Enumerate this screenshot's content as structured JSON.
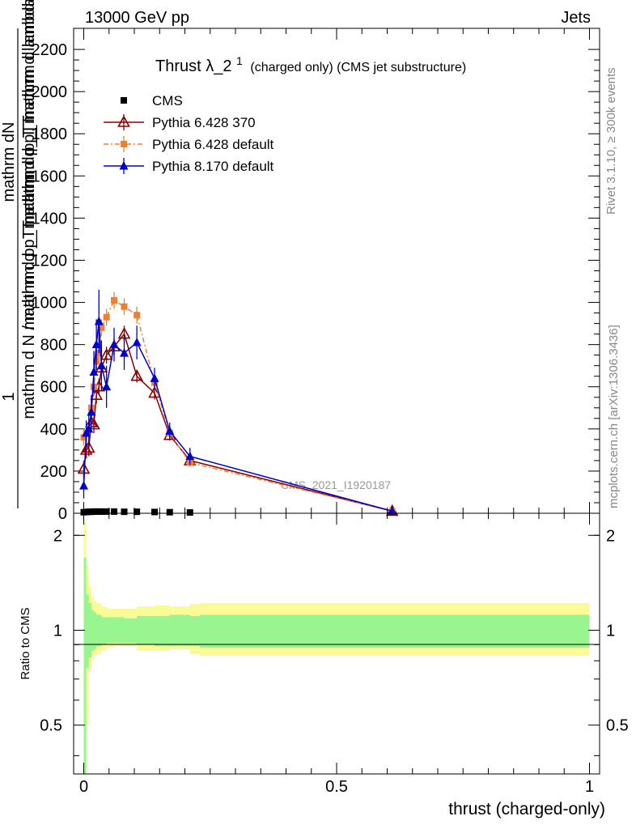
{
  "header": {
    "left": "13000 GeV pp",
    "right": "Jets"
  },
  "side_labels": {
    "rivet": "Rivet 3.1.10, ≥ 300k events",
    "mcplots": "mcplots.cern.ch [arXiv:1306.3436]"
  },
  "chart_data": {
    "type": "line",
    "title": "Thrust λ_2",
    "title_superscript": "1",
    "subtitle": "(charged only) (CMS jet substructure)",
    "analysis_label": "CMS_2021_I1920187",
    "xlabel": "thrust (charged-only)",
    "ylabel_top": "1",
    "ylabel_mid": "mathrm dN",
    "ylabel_denoms": [
      "mathrm d N / mathrm d p_T mathrm d p_T",
      "mathrm d p_T mathrm d p_T mathrm d lambda",
      "mathrm d p_T mathrm d lambda"
    ],
    "xlim": [
      -0.02,
      1.02
    ],
    "ylim": [
      0,
      2300
    ],
    "x_ticks": [
      "0",
      "0.5",
      "1"
    ],
    "y_ticks": [
      "0",
      "200",
      "400",
      "600",
      "800",
      "1000",
      "1200",
      "1400",
      "1600",
      "1800",
      "2000",
      "2200"
    ],
    "legend_position": "top-left",
    "series": [
      {
        "name": "CMS",
        "color": "#000000",
        "marker": "square",
        "x": [
          0.0,
          0.005,
          0.01,
          0.015,
          0.02,
          0.025,
          0.03,
          0.035,
          0.045,
          0.06,
          0.08,
          0.105,
          0.14,
          0.17,
          0.21
        ],
        "y": [
          5,
          6,
          7,
          7,
          8,
          8,
          8,
          8,
          8,
          8,
          7,
          7,
          6,
          5,
          4
        ]
      },
      {
        "name": "Pythia 6.428 370",
        "color": "#8b0000",
        "marker": "open-triangle",
        "x": [
          0.0,
          0.005,
          0.01,
          0.015,
          0.02,
          0.025,
          0.03,
          0.035,
          0.045,
          0.06,
          0.08,
          0.105,
          0.14,
          0.17,
          0.21,
          0.61
        ],
        "y": [
          210,
          300,
          310,
          430,
          420,
          560,
          600,
          690,
          750,
          790,
          850,
          650,
          570,
          370,
          250,
          10
        ],
        "err": [
          40,
          40,
          40,
          40,
          40,
          40,
          40,
          40,
          40,
          40,
          40,
          30,
          30,
          25,
          20,
          5
        ]
      },
      {
        "name": "Pythia 6.428 default",
        "color": "#f08030",
        "marker": "filled-square",
        "dash": true,
        "x": [
          0.0,
          0.005,
          0.01,
          0.015,
          0.02,
          0.025,
          0.03,
          0.035,
          0.045,
          0.06,
          0.08,
          0.105,
          0.14,
          0.17,
          0.21,
          0.61
        ],
        "y": [
          360,
          380,
          400,
          500,
          600,
          720,
          760,
          880,
          930,
          1010,
          980,
          940,
          620,
          380,
          240,
          10
        ],
        "err": [
          40,
          40,
          40,
          40,
          40,
          40,
          40,
          40,
          40,
          40,
          40,
          40,
          30,
          25,
          20,
          5
        ]
      },
      {
        "name": "Pythia 8.170 default",
        "color": "#0000cc",
        "marker": "filled-triangle",
        "x": [
          0.0,
          0.005,
          0.01,
          0.015,
          0.02,
          0.025,
          0.03,
          0.035,
          0.045,
          0.06,
          0.08,
          0.105,
          0.14,
          0.17,
          0.21,
          0.61
        ],
        "y": [
          130,
          380,
          400,
          480,
          670,
          800,
          910,
          700,
          600,
          800,
          760,
          810,
          640,
          390,
          270,
          10
        ],
        "err": [
          60,
          60,
          80,
          80,
          100,
          120,
          150,
          120,
          100,
          80,
          80,
          80,
          50,
          40,
          40,
          5
        ]
      }
    ],
    "ratio": {
      "ylabel": "Ratio to CMS",
      "yscale": "log",
      "ylim": [
        0.35,
        2.35
      ],
      "y_ticks": [
        "0.5",
        "1",
        "2"
      ],
      "band_edges": [
        0.0,
        0.005,
        0.01,
        0.015,
        0.02,
        0.025,
        0.035,
        0.045,
        0.06,
        0.08,
        0.105,
        0.14,
        0.17,
        0.21,
        0.23,
        1.0
      ],
      "inner_up": [
        1.7,
        1.3,
        1.22,
        1.16,
        1.14,
        1.12,
        1.1,
        1.1,
        1.1,
        1.09,
        1.11,
        1.11,
        1.12,
        1.11,
        1.12
      ],
      "inner_dn": [
        0.3,
        0.76,
        0.82,
        0.86,
        0.87,
        0.89,
        0.9,
        0.91,
        0.91,
        0.91,
        0.9,
        0.89,
        0.89,
        0.89,
        0.88
      ],
      "outer_up": [
        2.2,
        1.6,
        1.38,
        1.28,
        1.24,
        1.22,
        1.19,
        1.17,
        1.17,
        1.17,
        1.19,
        1.2,
        1.19,
        1.21,
        1.22
      ],
      "outer_dn": [
        0.3,
        0.5,
        0.75,
        0.81,
        0.83,
        0.84,
        0.86,
        0.88,
        0.89,
        0.89,
        0.86,
        0.86,
        0.87,
        0.84,
        0.83
      ],
      "colors": {
        "inner": "#99f58f",
        "outer": "#fafa96"
      }
    }
  }
}
